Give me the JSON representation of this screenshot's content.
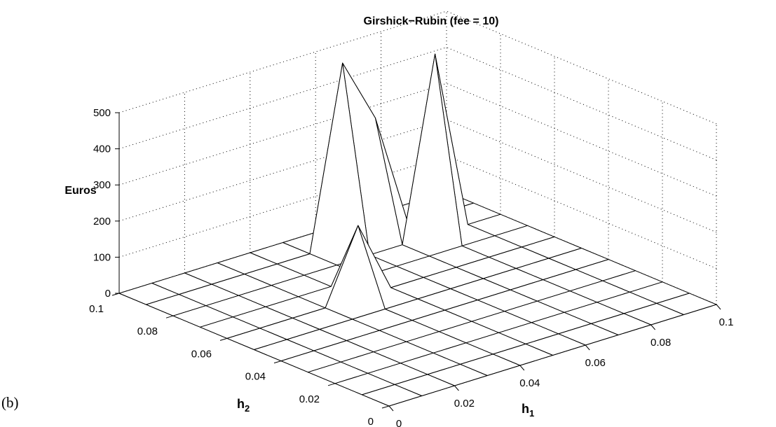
{
  "panel_label": "(b)",
  "chart_data": {
    "type": "surface",
    "title": "Girshick−Rubin (fee = 10)",
    "xlabel": "h",
    "xlabel_sub": "1",
    "ylabel": "h",
    "ylabel_sub": "2",
    "zlabel": "Euros",
    "xlim": [
      0,
      0.1
    ],
    "ylim": [
      0,
      0.1
    ],
    "zlim": [
      0,
      500
    ],
    "x_ticks": [
      "0",
      "0.02",
      "0.04",
      "0.06",
      "0.08",
      "0.1"
    ],
    "y_ticks": [
      "0",
      "0.02",
      "0.04",
      "0.06",
      "0.08",
      "0.1"
    ],
    "z_ticks": [
      "0",
      "100",
      "200",
      "300",
      "400",
      "500"
    ],
    "x_tick_values": [
      0,
      0.02,
      0.04,
      0.06,
      0.08,
      0.1
    ],
    "y_tick_values": [
      0,
      0.02,
      0.04,
      0.06,
      0.08,
      0.1
    ],
    "z_tick_values": [
      0,
      100,
      200,
      300,
      400,
      500
    ],
    "grid": true,
    "x": [
      0,
      0.01,
      0.02,
      0.03,
      0.04,
      0.05,
      0.06,
      0.07,
      0.08,
      0.09,
      0.1
    ],
    "y": [
      0,
      0.01,
      0.02,
      0.03,
      0.04,
      0.05,
      0.06,
      0.07,
      0.08,
      0.09,
      0.1
    ],
    "peaks": [
      {
        "x": 0.06,
        "y": 0.09,
        "z": 500
      },
      {
        "x": 0.07,
        "y": 0.09,
        "z": 320
      },
      {
        "x": 0.08,
        "y": 0.08,
        "z": 500
      },
      {
        "x": 0.04,
        "y": 0.06,
        "z": 200
      }
    ]
  }
}
